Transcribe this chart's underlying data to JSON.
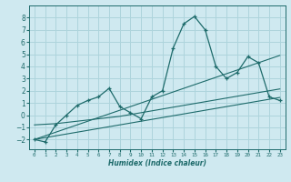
{
  "xlabel": "Humidex (Indice chaleur)",
  "bg_color": "#cfe9f0",
  "grid_color": "#add4dc",
  "line_color": "#1e6b6b",
  "x_values": [
    0,
    1,
    2,
    3,
    4,
    5,
    6,
    7,
    8,
    9,
    10,
    11,
    12,
    13,
    14,
    15,
    16,
    17,
    18,
    19,
    20,
    21,
    22,
    23
  ],
  "y_main": [
    -2.0,
    -2.2,
    -0.8,
    0.0,
    0.8,
    1.2,
    1.5,
    2.2,
    0.7,
    0.2,
    -0.3,
    1.5,
    2.0,
    5.5,
    7.5,
    8.1,
    7.0,
    4.0,
    3.0,
    3.5,
    4.8,
    4.3,
    1.5,
    1.2
  ],
  "y_trend1": [
    -2.0,
    -1.85,
    -1.7,
    -1.55,
    -1.4,
    -1.25,
    -1.1,
    -0.95,
    -0.8,
    -0.65,
    -0.5,
    -0.35,
    -0.2,
    -0.05,
    0.1,
    0.25,
    0.4,
    0.55,
    0.7,
    0.85,
    1.0,
    1.15,
    1.3,
    1.45
  ],
  "y_trend2": [
    -2.0,
    -1.7,
    -1.4,
    -1.1,
    -0.8,
    -0.5,
    -0.2,
    0.1,
    0.4,
    0.7,
    1.0,
    1.3,
    1.6,
    1.9,
    2.2,
    2.5,
    2.8,
    3.1,
    3.4,
    3.7,
    4.0,
    4.3,
    4.6,
    4.9
  ],
  "y_flat": [
    -0.8,
    -0.75,
    -0.7,
    -0.6,
    -0.5,
    -0.4,
    -0.3,
    -0.2,
    -0.1,
    0.05,
    0.2,
    0.35,
    0.5,
    0.65,
    0.8,
    0.95,
    1.1,
    1.25,
    1.4,
    1.55,
    1.7,
    1.85,
    2.0,
    2.15
  ],
  "ylim": [
    -2.8,
    9.0
  ],
  "xlim": [
    -0.5,
    23.5
  ],
  "yticks": [
    -2,
    -1,
    0,
    1,
    2,
    3,
    4,
    5,
    6,
    7,
    8
  ],
  "xticks": [
    0,
    1,
    2,
    3,
    4,
    5,
    6,
    7,
    8,
    9,
    10,
    11,
    12,
    13,
    14,
    15,
    16,
    17,
    18,
    19,
    20,
    21,
    22,
    23
  ]
}
